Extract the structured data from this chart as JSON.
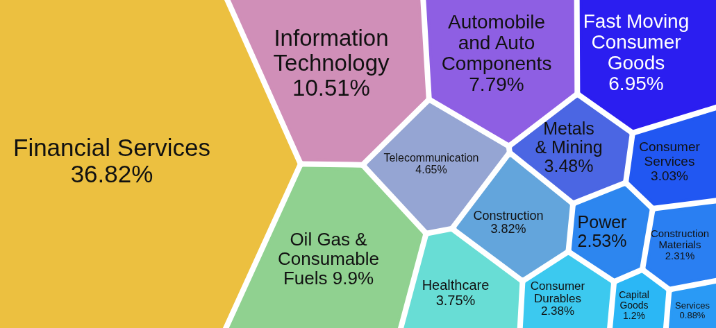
{
  "chart_data": {
    "type": "other",
    "categories": [
      "Financial Services",
      "Information Technology",
      "Oil Gas & Consumable Fuels",
      "Automobile and Auto Components",
      "Fast Moving Consumer Goods",
      "Telecommunication",
      "Construction",
      "Healthcare",
      "Metals & Mining",
      "Consumer Services",
      "Power",
      "Consumer Durables",
      "Construction Materials",
      "Capital Goods",
      "Services"
    ],
    "values": [
      36.82,
      10.51,
      9.9,
      7.79,
      6.95,
      4.65,
      3.82,
      3.75,
      3.48,
      3.03,
      2.53,
      2.38,
      2.31,
      1.2,
      0.88
    ],
    "value_labels": [
      "36.82%",
      "10.51%",
      "9.9%",
      "7.79%",
      "6.95%",
      "4.65%",
      "3.82%",
      "3.75%",
      "3.48%",
      "3.03%",
      "2.53%",
      "2.38%",
      "2.31%",
      "1.2%",
      "0.88%"
    ],
    "colors": [
      "#ecc040",
      "#d08fb8",
      "#90d190",
      "#8e5fe3",
      "#2b1ef0",
      "#95a5d3",
      "#63a5dc",
      "#68ddd5",
      "#4b66e3",
      "#2157f2",
      "#2d86ef",
      "#3cc9ef",
      "#2a7ff2",
      "#2bb7f5",
      "#2a9af5"
    ]
  }
}
